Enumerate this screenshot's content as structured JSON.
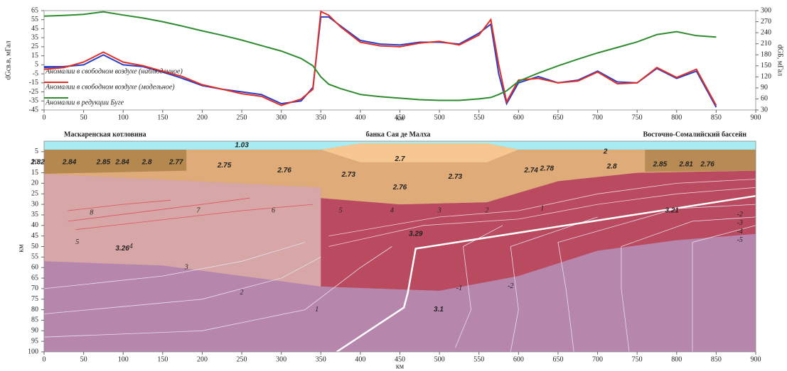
{
  "chart_data": [
    {
      "type": "line",
      "y_label": "dGсв.в, мГал",
      "y2_label": "dGБ, мГал",
      "x_label": "км",
      "x": [
        0,
        25,
        50,
        75,
        100,
        125,
        150,
        175,
        200,
        225,
        250,
        275,
        300,
        325,
        340,
        350,
        360,
        375,
        400,
        425,
        450,
        475,
        500,
        525,
        550,
        565,
        575,
        585,
        600,
        625,
        650,
        675,
        700,
        725,
        750,
        775,
        800,
        825,
        850
      ],
      "series": [
        {
          "name": "Аномалии в свободном воздухе  (наблюденное)",
          "color": "#2a3fc4",
          "values": [
            2,
            3,
            5,
            16,
            5,
            3,
            -3,
            -10,
            -18,
            -22,
            -25,
            -28,
            -38,
            -35,
            -20,
            58,
            58,
            48,
            32,
            28,
            27,
            30,
            30,
            28,
            40,
            50,
            -5,
            -38,
            -15,
            -8,
            -15,
            -12,
            -2,
            -14,
            -15,
            1,
            -10,
            -2,
            -42
          ]
        },
        {
          "name": "Аномалии в свободном воздухе  (модельное)",
          "color": "#e0302a",
          "values": [
            0,
            2,
            8,
            19,
            8,
            4,
            -2,
            -8,
            -17,
            -22,
            -27,
            -30,
            -40,
            -33,
            -22,
            64,
            60,
            47,
            30,
            26,
            25,
            29,
            31,
            27,
            38,
            55,
            5,
            -36,
            -12,
            -10,
            -15,
            -13,
            -3,
            -16,
            -15,
            2,
            -9,
            0,
            -40
          ]
        },
        {
          "name": "Аномалии в редукции Буге",
          "color": "#2e8b2e",
          "axis": "y2",
          "values": [
            285,
            287,
            290,
            297,
            288,
            280,
            270,
            258,
            245,
            233,
            220,
            205,
            190,
            170,
            150,
            120,
            100,
            88,
            72,
            66,
            62,
            58,
            56,
            56,
            60,
            64,
            72,
            82,
            108,
            130,
            150,
            168,
            185,
            200,
            215,
            235,
            243,
            232,
            228
          ]
        }
      ],
      "xlim": [
        0,
        900
      ],
      "xticks": [
        0,
        50,
        100,
        150,
        200,
        250,
        300,
        350,
        400,
        450,
        500,
        550,
        600,
        650,
        700,
        750,
        800,
        850,
        900
      ],
      "ylim": [
        -45,
        65
      ],
      "yticks": [
        -45,
        -35,
        -25,
        -15,
        -5,
        5,
        15,
        25,
        35,
        45,
        55,
        65
      ],
      "y2lim": [
        30,
        300
      ],
      "y2ticks": [
        30,
        60,
        90,
        120,
        150,
        180,
        210,
        240,
        270,
        300
      ]
    },
    {
      "type": "cross-section",
      "region_labels": [
        "Маскаренская котловина",
        "банка Сая де Малха",
        "Восточно-Сомалийский бассейн"
      ],
      "density_labels": [
        1.03,
        2.82,
        2.84,
        2.85,
        2.84,
        2.8,
        2.77,
        2.75,
        2.76,
        2.73,
        2.7,
        2.76,
        2.73,
        2.74,
        2.78,
        2.8,
        2.85,
        2.81,
        2.76,
        2,
        3.29,
        3.26,
        3.1,
        3.21
      ],
      "isoline_labels": [
        8,
        7,
        6,
        5,
        4,
        3,
        2,
        1,
        5,
        4,
        3,
        2,
        1,
        -1,
        -2,
        -2,
        -3,
        -4,
        -5
      ],
      "y_label": "км",
      "x_label": "км",
      "xlim": [
        0,
        900
      ],
      "xticks": [
        0,
        50,
        100,
        150,
        200,
        250,
        300,
        350,
        400,
        450,
        500,
        550,
        600,
        650,
        700,
        750,
        800,
        850,
        900
      ],
      "ylim": [
        0,
        100
      ],
      "yticks": [
        5,
        10,
        15,
        20,
        25,
        30,
        35,
        40,
        45,
        50,
        55,
        60,
        65,
        70,
        75,
        80,
        85,
        90,
        95,
        100
      ]
    }
  ]
}
